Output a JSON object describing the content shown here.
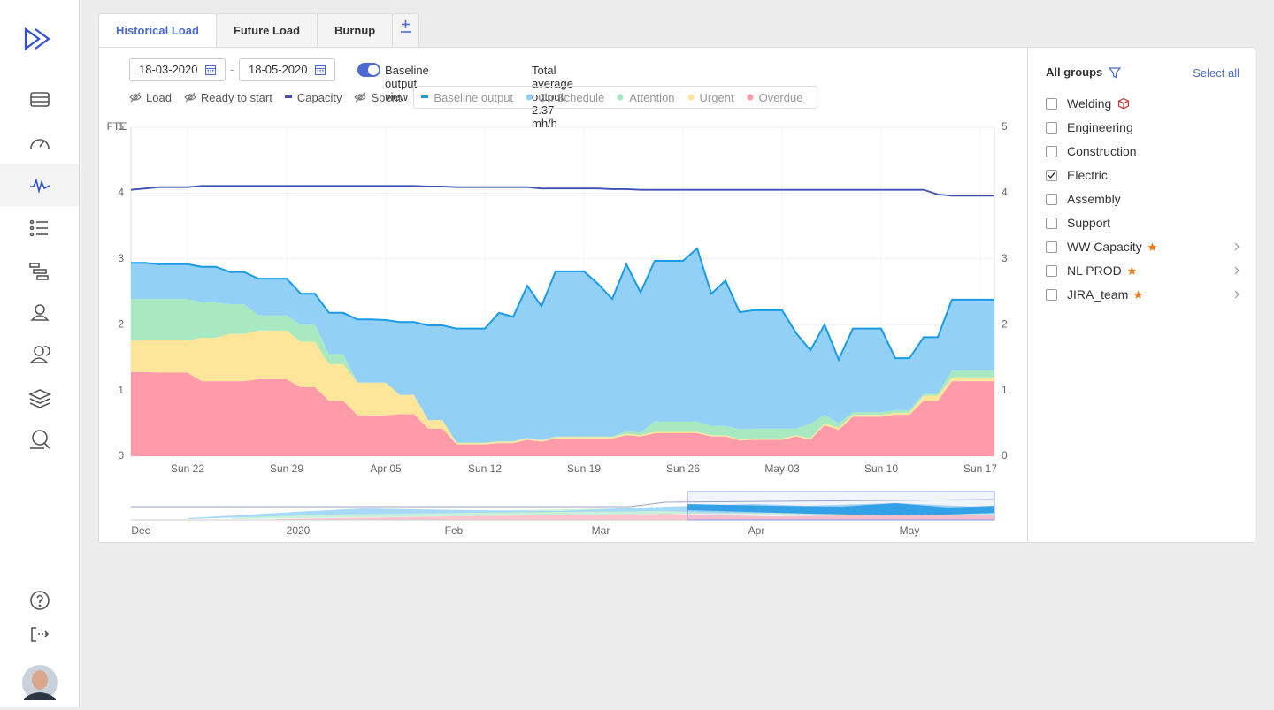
{
  "tabs": [
    "Historical Load",
    "Future Load",
    "Burnup"
  ],
  "active_tab": 0,
  "toolbar": {
    "date_from": "18-03-2020",
    "date_separator": "-",
    "date_to": "18-05-2020",
    "toggle_label": "Baseline output view",
    "toggle_on": true,
    "summary": "Total average output: 2.37 mh/h"
  },
  "chart_data": {
    "type": "area",
    "y_label": "FTE",
    "hidden_series": [
      "Load",
      "Ready to start",
      "Spent"
    ],
    "categories": [
      null,
      null,
      null,
      null,
      "Sun 22",
      null,
      null,
      null,
      null,
      null,
      null,
      "Sun 29",
      null,
      null,
      null,
      null,
      null,
      null,
      "Apr 05",
      null,
      null,
      null,
      null,
      null,
      null,
      "Sun 12",
      null,
      null,
      null,
      null,
      null,
      null,
      "Sun 19",
      null,
      null,
      null,
      null,
      null,
      null,
      "Sun 26",
      null,
      null,
      null,
      null,
      null,
      null,
      "May 03",
      null,
      null,
      null,
      null,
      null,
      null,
      "Sun 10",
      null,
      null,
      null,
      null,
      null,
      null,
      "Sun 17",
      null
    ],
    "series": [
      {
        "name": "Capacity",
        "kind": "line",
        "color": "#3f51b5",
        "values": [
          4.05,
          4.07,
          4.09,
          4.09,
          4.09,
          4.11,
          4.11,
          4.11,
          4.11,
          4.11,
          4.11,
          4.11,
          4.11,
          4.11,
          4.11,
          4.11,
          4.11,
          4.11,
          4.11,
          4.11,
          4.11,
          4.1,
          4.1,
          4.09,
          4.09,
          4.09,
          4.09,
          4.09,
          4.09,
          4.07,
          4.07,
          4.07,
          4.07,
          4.07,
          4.06,
          4.06,
          4.05,
          4.05,
          4.05,
          4.05,
          4.05,
          4.05,
          4.05,
          4.05,
          4.05,
          4.05,
          4.05,
          4.05,
          4.05,
          4.05,
          4.05,
          4.05,
          4.05,
          4.05,
          4.05,
          4.05,
          4.05,
          3.98,
          3.96,
          3.96,
          3.96,
          3.96
        ]
      },
      {
        "name": "Baseline output",
        "kind": "line",
        "color": "#1a9be6",
        "values": [
          2.94,
          2.94,
          2.92,
          2.92,
          2.92,
          2.88,
          2.88,
          2.8,
          2.8,
          2.7,
          2.7,
          2.7,
          2.47,
          2.47,
          2.18,
          2.18,
          2.08,
          2.08,
          2.07,
          2.04,
          2.04,
          1.99,
          1.99,
          1.94,
          1.94,
          1.94,
          2.18,
          2.12,
          2.59,
          2.28,
          2.81,
          2.81,
          2.81,
          2.62,
          2.39,
          2.92,
          2.49,
          2.97,
          2.97,
          2.97,
          3.16,
          2.47,
          2.67,
          2.19,
          2.22,
          2.22,
          2.22,
          1.87,
          1.61,
          2,
          1.47,
          1.94,
          1.94,
          1.94,
          1.49,
          1.49,
          1.81,
          1.81,
          2.38,
          2.38,
          2.38,
          2.38
        ]
      },
      {
        "name": "On Schedule",
        "kind": "area",
        "color": "#93d0f6",
        "values": [
          0.55,
          0.55,
          0.53,
          0.53,
          0.53,
          0.54,
          0.54,
          0.49,
          0.49,
          0.56,
          0.56,
          0.56,
          0.47,
          0.47,
          0.63,
          0.63,
          0.96,
          0.96,
          0.95,
          1.11,
          1.11,
          1.44,
          1.44,
          1.73,
          1.73,
          1.73,
          1.95,
          1.89,
          2.31,
          2.03,
          2.51,
          2.51,
          2.51,
          2.32,
          2.09,
          2.54,
          2.13,
          2.44,
          2.44,
          2.44,
          2.63,
          2.01,
          2.21,
          1.78,
          1.8,
          1.8,
          1.8,
          1.45,
          1.12,
          1.37,
          0.97,
          1.27,
          1.27,
          1.27,
          0.79,
          0.79,
          0.86,
          0.86,
          1.08,
          1.08,
          1.08,
          1.08
        ]
      },
      {
        "name": "Attention",
        "kind": "area",
        "color": "#a8e9c1",
        "values": [
          0.63,
          0.63,
          0.63,
          0.63,
          0.63,
          0.54,
          0.54,
          0.45,
          0.45,
          0.23,
          0.23,
          0.23,
          0.26,
          0.26,
          0.15,
          0.15,
          0,
          0,
          0,
          0,
          0,
          0,
          0,
          0.01,
          0.01,
          0.01,
          0.01,
          0.01,
          0.01,
          0.01,
          0.01,
          0.01,
          0.01,
          0.01,
          0.01,
          0.04,
          0.04,
          0.16,
          0.16,
          0.16,
          0.16,
          0.14,
          0.14,
          0.15,
          0.15,
          0.15,
          0.15,
          0.1,
          0.22,
          0.13,
          0.07,
          0.04,
          0.04,
          0.04,
          0.04,
          0.04,
          0.03,
          0.03,
          0.1,
          0.1,
          0.1,
          0.1
        ]
      },
      {
        "name": "Urgent",
        "kind": "area",
        "color": "#fde69a",
        "values": [
          0.48,
          0.48,
          0.49,
          0.49,
          0.49,
          0.66,
          0.66,
          0.72,
          0.72,
          0.74,
          0.74,
          0.74,
          0.69,
          0.69,
          0.56,
          0.56,
          0.5,
          0.5,
          0.5,
          0.29,
          0.29,
          0.13,
          0.13,
          0.02,
          0.02,
          0.02,
          0.02,
          0.02,
          0.02,
          0.02,
          0.02,
          0.02,
          0.02,
          0.02,
          0.02,
          0.02,
          0.02,
          0.02,
          0.02,
          0.02,
          0.02,
          0.02,
          0.02,
          0.02,
          0.02,
          0.02,
          0.02,
          0.02,
          0.02,
          0.03,
          0.03,
          0.03,
          0.03,
          0.03,
          0.03,
          0.03,
          0.08,
          0.08,
          0.06,
          0.06,
          0.06,
          0.06
        ]
      },
      {
        "name": "Overdue",
        "kind": "area",
        "color": "#ff9aaa",
        "values": [
          1.28,
          1.28,
          1.27,
          1.27,
          1.27,
          1.14,
          1.14,
          1.14,
          1.14,
          1.17,
          1.17,
          1.17,
          1.05,
          1.05,
          0.84,
          0.84,
          0.62,
          0.62,
          0.62,
          0.64,
          0.64,
          0.42,
          0.42,
          0.18,
          0.18,
          0.18,
          0.2,
          0.2,
          0.25,
          0.22,
          0.27,
          0.27,
          0.27,
          0.27,
          0.27,
          0.32,
          0.3,
          0.35,
          0.35,
          0.35,
          0.35,
          0.3,
          0.3,
          0.24,
          0.25,
          0.25,
          0.25,
          0.3,
          0.25,
          0.47,
          0.4,
          0.6,
          0.6,
          0.6,
          0.63,
          0.63,
          0.84,
          0.84,
          1.14,
          1.14,
          1.14,
          1.14
        ]
      }
    ],
    "ylim": [
      0,
      5
    ],
    "yticks": [
      0,
      1,
      2,
      3,
      4,
      5
    ],
    "y2lim": [
      0,
      5
    ],
    "y2ticks": [
      0,
      1,
      2,
      3,
      4,
      5
    ],
    "grid": true,
    "navigator_labels": [
      "Dec",
      "2020",
      "Feb",
      "Mar",
      "Apr",
      "May"
    ]
  },
  "groups_panel": {
    "title": "All groups",
    "select_all": "Select all",
    "groups": [
      {
        "name": "Welding",
        "checked": false,
        "flag": "cube"
      },
      {
        "name": "Engineering",
        "checked": false
      },
      {
        "name": "Construction",
        "checked": false
      },
      {
        "name": "Electric",
        "checked": true
      },
      {
        "name": "Assembly",
        "checked": false
      },
      {
        "name": "Support",
        "checked": false
      },
      {
        "name": "WW Capacity",
        "checked": false,
        "starred": true,
        "expandable": true
      },
      {
        "name": "NL PROD",
        "checked": false,
        "starred": true,
        "expandable": true
      },
      {
        "name": "JIRA_team",
        "checked": false,
        "starred": true,
        "expandable": true
      }
    ]
  }
}
